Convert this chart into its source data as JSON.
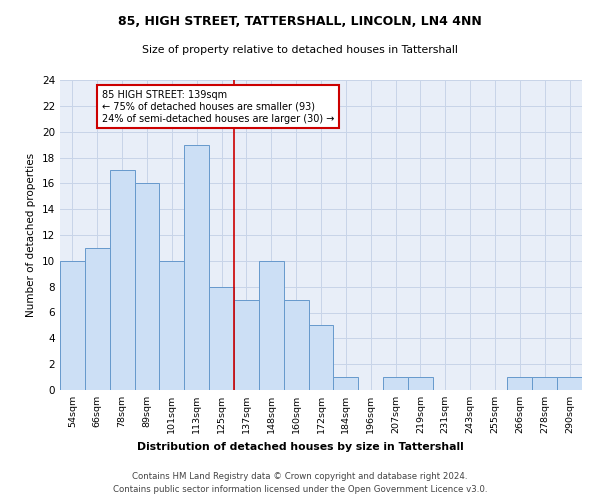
{
  "title": "85, HIGH STREET, TATTERSHALL, LINCOLN, LN4 4NN",
  "subtitle": "Size of property relative to detached houses in Tattershall",
  "xlabel_bottom": "Distribution of detached houses by size in Tattershall",
  "ylabel": "Number of detached properties",
  "bar_labels": [
    "54sqm",
    "66sqm",
    "78sqm",
    "89sqm",
    "101sqm",
    "113sqm",
    "125sqm",
    "137sqm",
    "148sqm",
    "160sqm",
    "172sqm",
    "184sqm",
    "196sqm",
    "207sqm",
    "219sqm",
    "231sqm",
    "243sqm",
    "255sqm",
    "266sqm",
    "278sqm",
    "290sqm"
  ],
  "bar_values": [
    10,
    11,
    17,
    16,
    10,
    19,
    8,
    7,
    10,
    7,
    5,
    1,
    0,
    1,
    1,
    0,
    0,
    0,
    1,
    1,
    1
  ],
  "bar_color": "#ccdff5",
  "bar_edge_color": "#6699cc",
  "vline_color": "#cc0000",
  "annotation_text": "85 HIGH STREET: 139sqm\n← 75% of detached houses are smaller (93)\n24% of semi-detached houses are larger (30) →",
  "annotation_box_color": "#ffffff",
  "annotation_box_edge": "#cc0000",
  "grid_color": "#c8d4e8",
  "bg_color": "#e8eef8",
  "footer_line1": "Contains HM Land Registry data © Crown copyright and database right 2024.",
  "footer_line2": "Contains public sector information licensed under the Open Government Licence v3.0.",
  "ylim": [
    0,
    24
  ],
  "yticks": [
    0,
    2,
    4,
    6,
    8,
    10,
    12,
    14,
    16,
    18,
    20,
    22,
    24
  ],
  "vline_index": 6.5
}
